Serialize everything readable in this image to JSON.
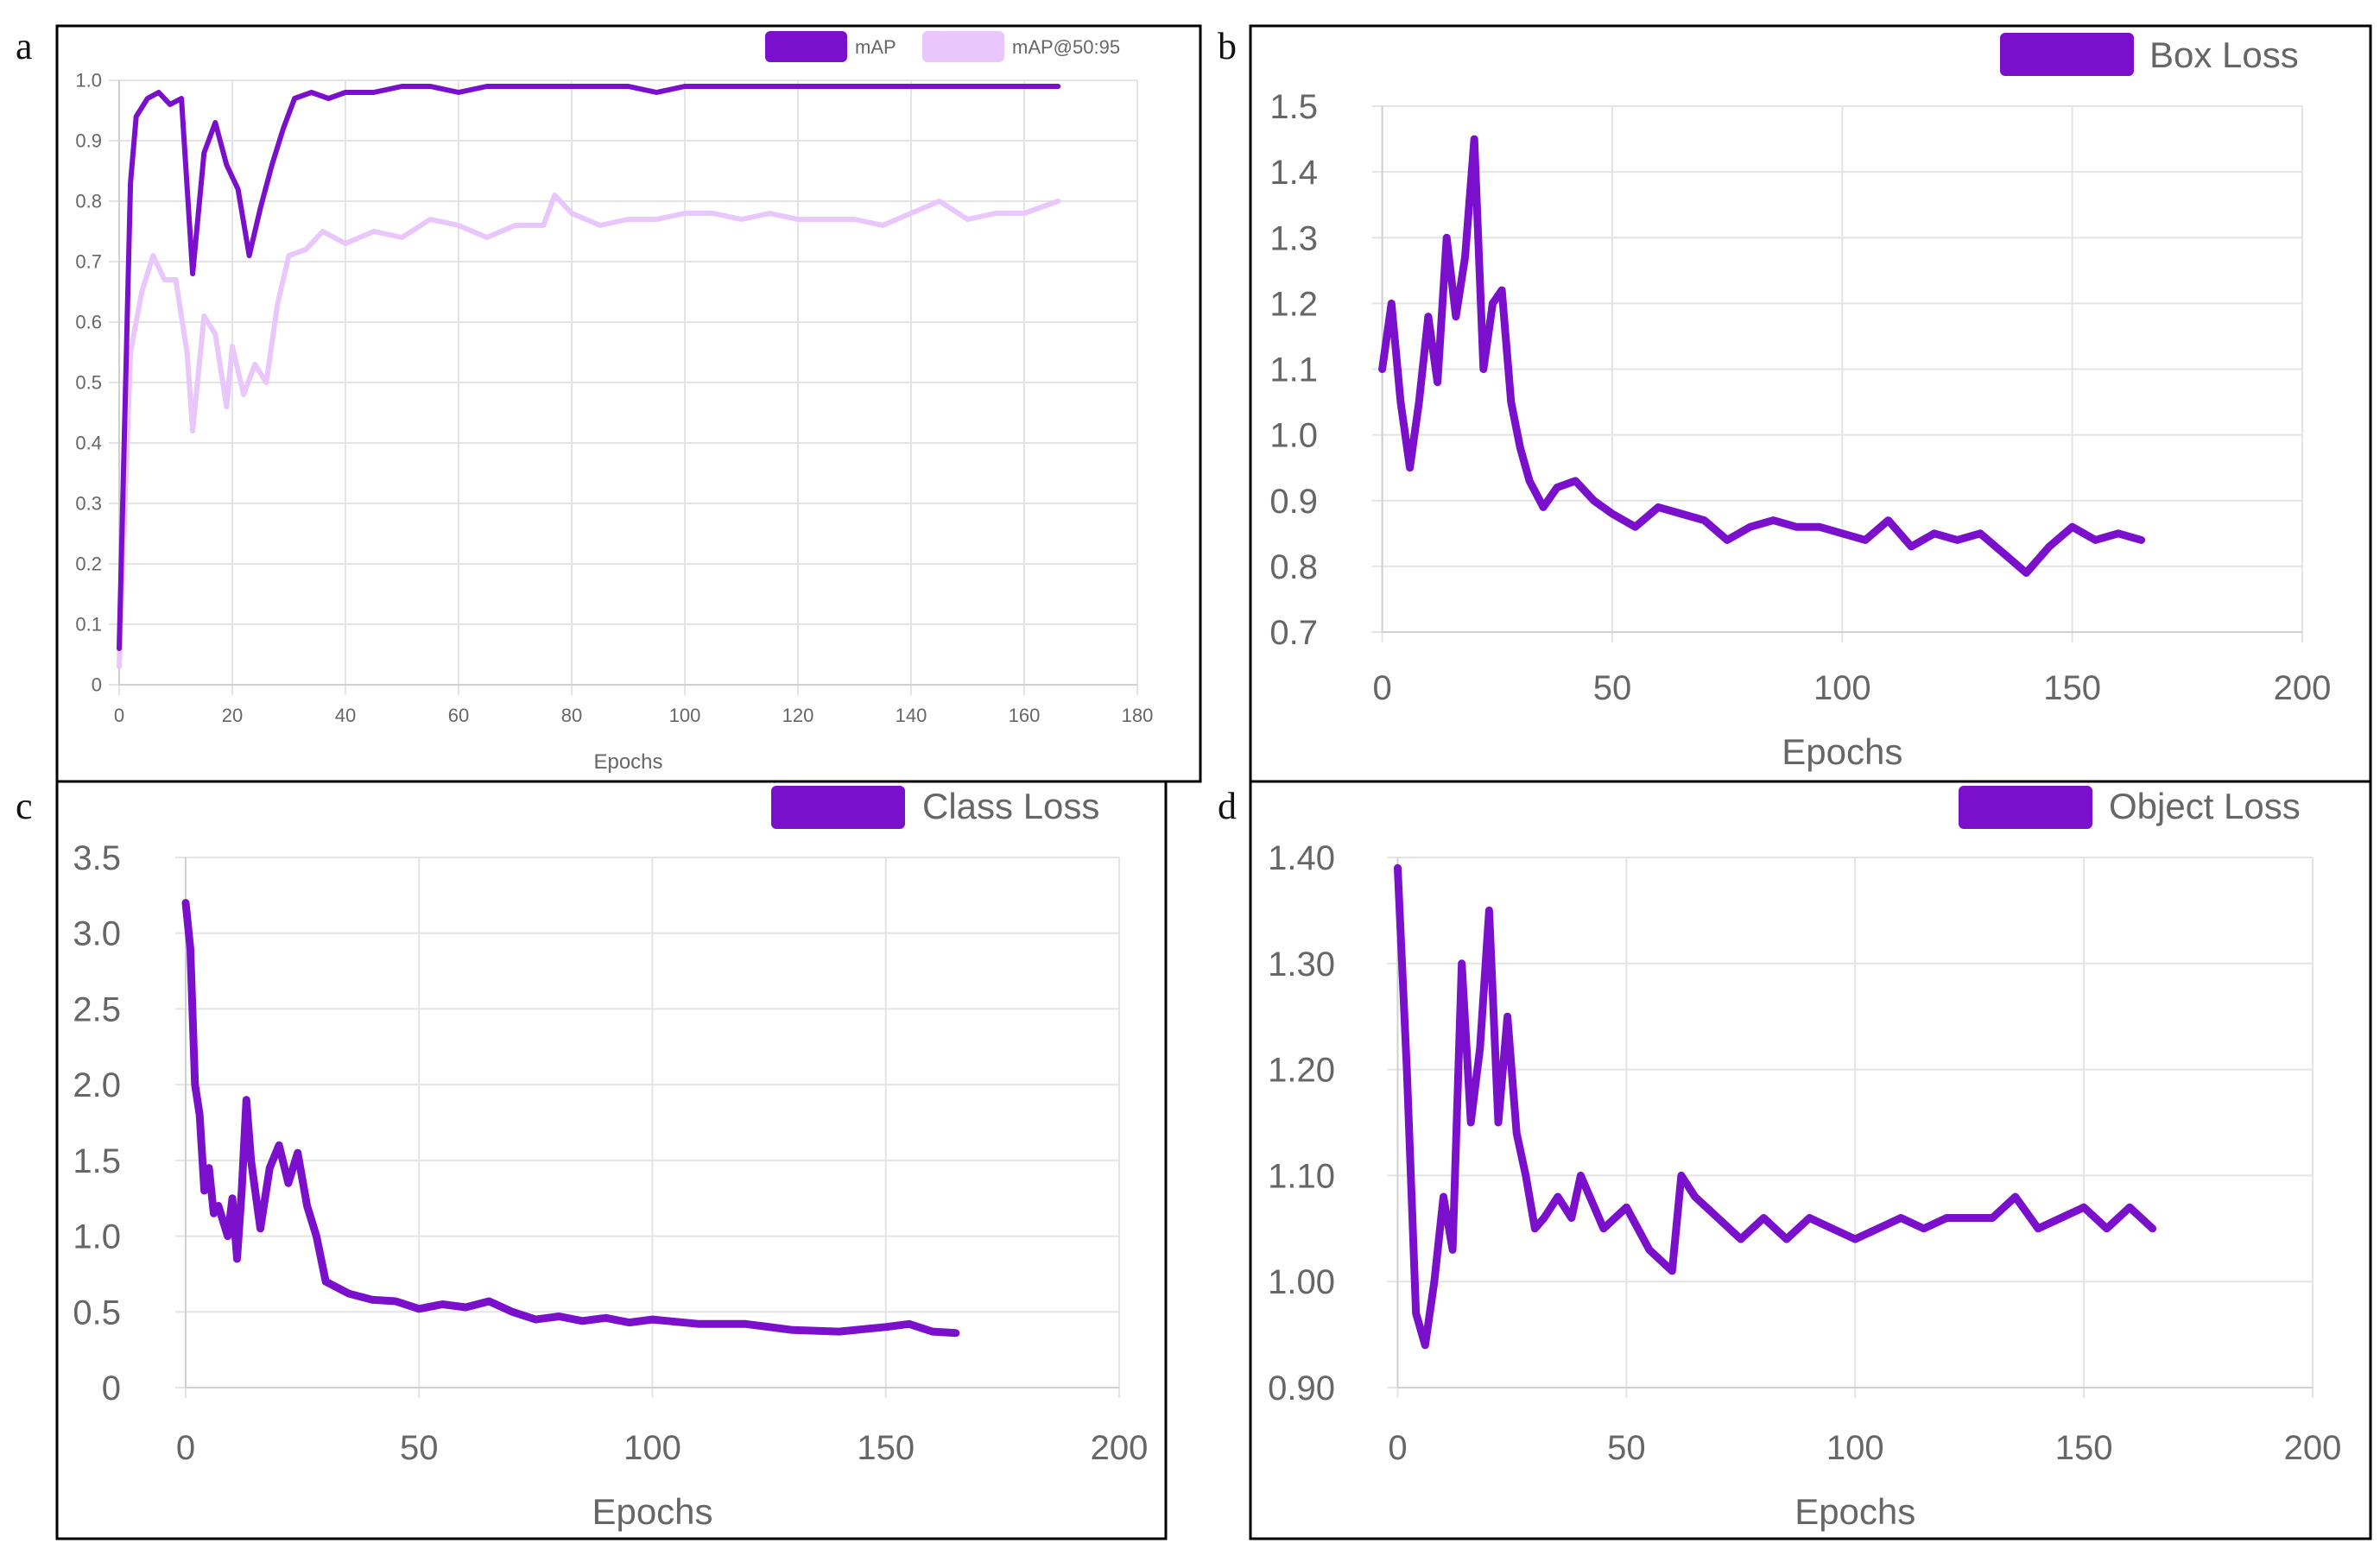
{
  "panel_letters": [
    "a",
    "b",
    "c",
    "d"
  ],
  "colors": {
    "map": "#7a0fcc",
    "map50_95": "#e9c6fb",
    "loss": "#7a0fcc",
    "grid": "#e4e4e4",
    "frame": "#000000"
  },
  "chart_data": [
    {
      "type": "line",
      "xlabel": "Epochs",
      "xlim": [
        0,
        180
      ],
      "ylim": [
        0,
        1.0
      ],
      "xticks": [
        "0",
        "20",
        "40",
        "60",
        "80",
        "100",
        "120",
        "140",
        "160",
        "180"
      ],
      "yticks": [
        "0",
        "0.1",
        "0.2",
        "0.3",
        "0.4",
        "0.5",
        "0.6",
        "0.7",
        "0.8",
        "0.9",
        "1.0"
      ],
      "grid": true,
      "legend": "top-right",
      "series": [
        {
          "name": "mAP",
          "x": [
            0,
            2,
            3,
            5,
            7,
            9,
            11,
            13,
            15,
            17,
            19,
            21,
            23,
            25,
            27,
            29,
            31,
            34,
            37,
            40,
            45,
            50,
            55,
            60,
            65,
            70,
            75,
            80,
            85,
            90,
            95,
            100,
            110,
            120,
            130,
            140,
            150,
            160,
            166
          ],
          "y": [
            0.06,
            0.83,
            0.94,
            0.97,
            0.98,
            0.96,
            0.97,
            0.68,
            0.88,
            0.93,
            0.86,
            0.82,
            0.71,
            0.79,
            0.86,
            0.92,
            0.97,
            0.98,
            0.97,
            0.98,
            0.98,
            0.99,
            0.99,
            0.98,
            0.99,
            0.99,
            0.99,
            0.99,
            0.99,
            0.99,
            0.98,
            0.99,
            0.99,
            0.99,
            0.99,
            0.99,
            0.99,
            0.99,
            0.99
          ]
        },
        {
          "name": "mAP@50:95",
          "x": [
            0,
            2,
            4,
            6,
            8,
            10,
            12,
            13,
            15,
            17,
            19,
            20,
            22,
            24,
            26,
            28,
            30,
            33,
            36,
            40,
            45,
            50,
            55,
            60,
            65,
            70,
            75,
            77,
            80,
            85,
            90,
            95,
            100,
            105,
            110,
            115,
            120,
            125,
            130,
            135,
            140,
            145,
            150,
            155,
            160,
            166
          ],
          "y": [
            0.03,
            0.55,
            0.65,
            0.71,
            0.67,
            0.67,
            0.55,
            0.42,
            0.61,
            0.58,
            0.46,
            0.56,
            0.48,
            0.53,
            0.5,
            0.63,
            0.71,
            0.72,
            0.75,
            0.73,
            0.75,
            0.74,
            0.77,
            0.76,
            0.74,
            0.76,
            0.76,
            0.81,
            0.78,
            0.76,
            0.77,
            0.77,
            0.78,
            0.78,
            0.77,
            0.78,
            0.77,
            0.77,
            0.77,
            0.76,
            0.78,
            0.8,
            0.77,
            0.78,
            0.78,
            0.8
          ]
        }
      ]
    },
    {
      "type": "line",
      "xlabel": "Epochs",
      "xlim": [
        -5,
        200
      ],
      "ylim": [
        0.7,
        1.5
      ],
      "xticks": [
        "0",
        "50",
        "100",
        "150",
        "200"
      ],
      "yticks": [
        "0.7",
        "0.8",
        "0.9",
        "1.0",
        "1.1",
        "1.2",
        "1.3",
        "1.4",
        "1.5"
      ],
      "grid": true,
      "legend": "top-right",
      "series": [
        {
          "name": "Box Loss",
          "x": [
            0,
            2,
            4,
            6,
            8,
            10,
            12,
            14,
            16,
            18,
            20,
            22,
            24,
            26,
            28,
            30,
            32,
            35,
            38,
            42,
            46,
            50,
            55,
            60,
            65,
            70,
            75,
            80,
            85,
            90,
            95,
            100,
            105,
            110,
            115,
            120,
            125,
            130,
            135,
            140,
            145,
            150,
            155,
            160,
            165
          ],
          "y": [
            1.1,
            1.2,
            1.05,
            0.95,
            1.05,
            1.18,
            1.08,
            1.3,
            1.18,
            1.27,
            1.45,
            1.1,
            1.2,
            1.22,
            1.05,
            0.98,
            0.93,
            0.89,
            0.92,
            0.93,
            0.9,
            0.88,
            0.86,
            0.89,
            0.88,
            0.87,
            0.84,
            0.86,
            0.87,
            0.86,
            0.86,
            0.85,
            0.84,
            0.87,
            0.83,
            0.85,
            0.84,
            0.85,
            0.82,
            0.79,
            0.83,
            0.86,
            0.84,
            0.85,
            0.84
          ]
        }
      ]
    },
    {
      "type": "line",
      "xlabel": "Epochs",
      "xlim": [
        -5,
        200
      ],
      "ylim": [
        0,
        3.5
      ],
      "xticks": [
        "0",
        "50",
        "100",
        "150",
        "200"
      ],
      "yticks": [
        "0",
        "0.5",
        "1.0",
        "1.5",
        "2.0",
        "2.5",
        "3.0",
        "3.5"
      ],
      "grid": true,
      "legend": "top-right",
      "series": [
        {
          "name": "Class Loss",
          "x": [
            0,
            1,
            2,
            3,
            4,
            5,
            6,
            7,
            8,
            9,
            10,
            11,
            12,
            13,
            14,
            16,
            18,
            20,
            22,
            24,
            26,
            28,
            30,
            35,
            40,
            45,
            50,
            55,
            60,
            65,
            70,
            75,
            80,
            85,
            90,
            95,
            100,
            110,
            120,
            130,
            140,
            150,
            155,
            160,
            165
          ],
          "y": [
            3.2,
            2.9,
            2.0,
            1.8,
            1.3,
            1.45,
            1.15,
            1.2,
            1.1,
            1.0,
            1.25,
            0.85,
            1.3,
            1.9,
            1.5,
            1.05,
            1.45,
            1.6,
            1.35,
            1.55,
            1.2,
            1.0,
            0.7,
            0.62,
            0.58,
            0.57,
            0.52,
            0.55,
            0.53,
            0.57,
            0.5,
            0.45,
            0.47,
            0.44,
            0.46,
            0.43,
            0.45,
            0.42,
            0.42,
            0.38,
            0.37,
            0.4,
            0.42,
            0.37,
            0.36
          ]
        }
      ]
    },
    {
      "type": "line",
      "xlabel": "Epochs",
      "xlim": [
        -5,
        200
      ],
      "ylim": [
        0.9,
        1.4
      ],
      "xticks": [
        "0",
        "50",
        "100",
        "150",
        "200"
      ],
      "yticks": [
        "0.90",
        "1.00",
        "1.10",
        "1.20",
        "1.30",
        "1.40"
      ],
      "grid": true,
      "legend": "top-right",
      "series": [
        {
          "name": "Object Loss",
          "x": [
            0,
            2,
            4,
            6,
            8,
            10,
            12,
            14,
            16,
            18,
            20,
            22,
            24,
            26,
            28,
            30,
            32,
            35,
            38,
            40,
            45,
            50,
            55,
            60,
            62,
            65,
            70,
            75,
            80,
            85,
            90,
            95,
            100,
            105,
            110,
            115,
            120,
            125,
            130,
            135,
            140,
            145,
            150,
            155,
            160,
            165
          ],
          "y": [
            1.39,
            1.2,
            0.97,
            0.94,
            1.0,
            1.08,
            1.03,
            1.3,
            1.15,
            1.22,
            1.35,
            1.15,
            1.25,
            1.14,
            1.1,
            1.05,
            1.06,
            1.08,
            1.06,
            1.1,
            1.05,
            1.07,
            1.03,
            1.01,
            1.1,
            1.08,
            1.06,
            1.04,
            1.06,
            1.04,
            1.06,
            1.05,
            1.04,
            1.05,
            1.06,
            1.05,
            1.06,
            1.06,
            1.06,
            1.08,
            1.05,
            1.06,
            1.07,
            1.05,
            1.07,
            1.05
          ]
        }
      ]
    }
  ]
}
